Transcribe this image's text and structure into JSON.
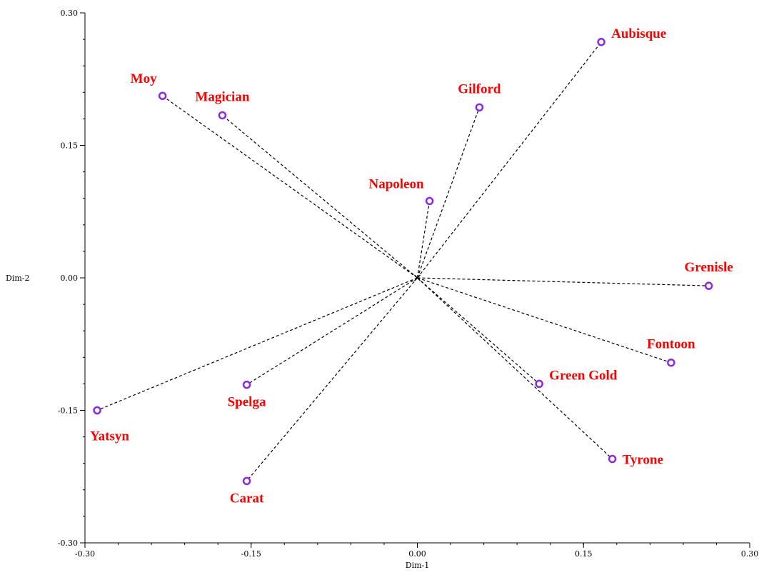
{
  "chart_data": {
    "type": "scatter",
    "title": "",
    "xlabel": "Dim-1",
    "ylabel": "Dim-2",
    "xlim": [
      -0.3,
      0.3
    ],
    "ylim": [
      -0.3,
      0.3
    ],
    "xticks": [
      -0.3,
      -0.15,
      0.0,
      0.15,
      0.3
    ],
    "xtick_labels": [
      "-0.30",
      "-0.15",
      "0.00",
      "0.15",
      "0.30"
    ],
    "yticks": [
      -0.3,
      -0.15,
      0.0,
      0.15,
      0.3
    ],
    "ytick_labels": [
      "-0.30",
      "-0.15",
      "0.00",
      "0.15",
      "0.30"
    ],
    "origin": [
      0,
      0
    ],
    "connector_lines": "dashed from origin to each point",
    "point_color": "#8a2be2",
    "label_color": "#ff0000",
    "points": [
      {
        "name": "Aubisque",
        "x": 0.166,
        "y": 0.267,
        "label_pos": "right-above"
      },
      {
        "name": "Moy",
        "x": -0.23,
        "y": 0.206,
        "label_pos": "above-left"
      },
      {
        "name": "Magician",
        "x": -0.176,
        "y": 0.184,
        "label_pos": "above"
      },
      {
        "name": "Gilford",
        "x": 0.056,
        "y": 0.193,
        "label_pos": "above"
      },
      {
        "name": "Napoleon",
        "x": 0.011,
        "y": 0.087,
        "label_pos": "above-left"
      },
      {
        "name": "Grenisle",
        "x": 0.263,
        "y": -0.009,
        "label_pos": "above"
      },
      {
        "name": "Fontoon",
        "x": 0.229,
        "y": -0.096,
        "label_pos": "above"
      },
      {
        "name": "Green Gold",
        "x": 0.11,
        "y": -0.12,
        "label_pos": "right-above"
      },
      {
        "name": "Tyrone",
        "x": 0.176,
        "y": -0.205,
        "label_pos": "right"
      },
      {
        "name": "Spelga",
        "x": -0.154,
        "y": -0.121,
        "label_pos": "below"
      },
      {
        "name": "Yatsyn",
        "x": -0.289,
        "y": -0.15,
        "label_pos": "below-right"
      },
      {
        "name": "Carat",
        "x": -0.154,
        "y": -0.23,
        "label_pos": "below"
      }
    ]
  }
}
